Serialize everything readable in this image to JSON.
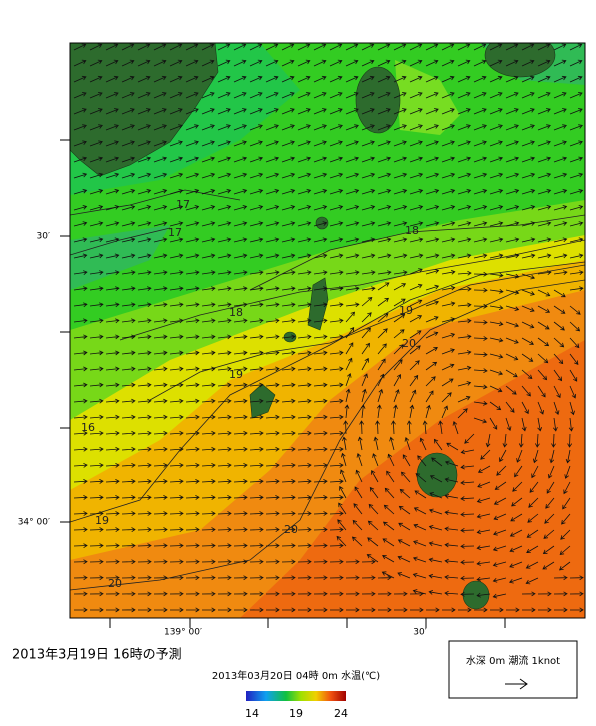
{
  "map": {
    "lat_labels": [
      "30′",
      "34° 00′"
    ],
    "lon_labels": [
      "139° 00′",
      "30′"
    ],
    "contour_labels": [
      17,
      17,
      18,
      18,
      19,
      20,
      19,
      16,
      19,
      20,
      20
    ]
  },
  "caption": {
    "title": "2013年3月19日 16時の予測",
    "subtitle": "2013年03月20日 04時 0m 水温(℃)"
  },
  "colorbar": {
    "ticks": [
      14,
      19,
      24
    ]
  },
  "legend": {
    "label": "水深 0m 潮流 1knot"
  }
}
